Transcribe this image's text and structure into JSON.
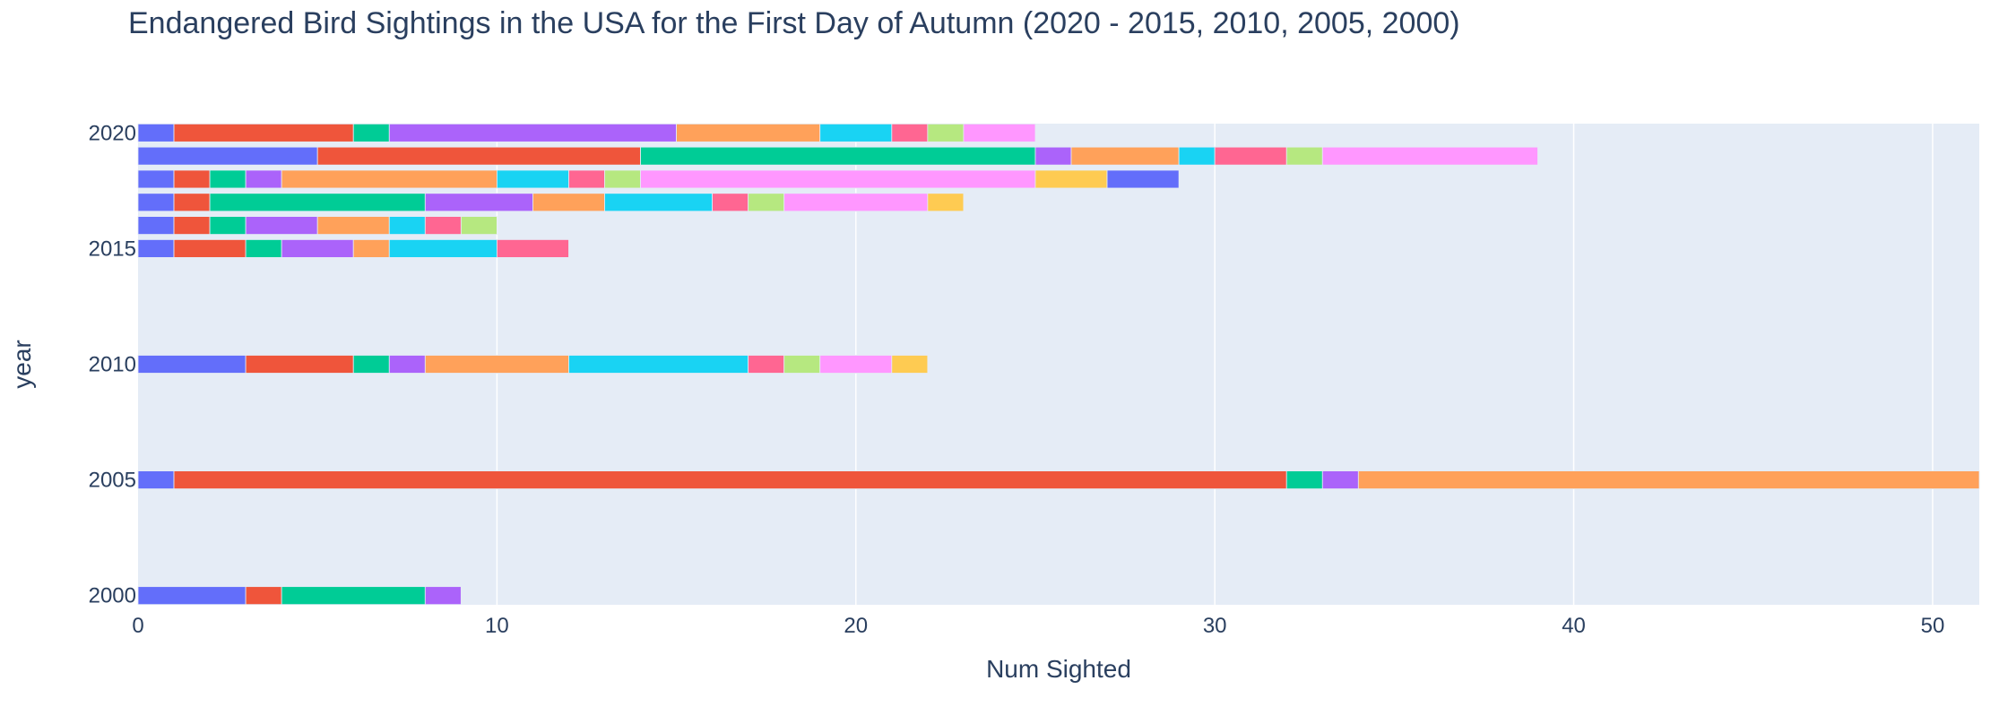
{
  "chart_data": {
    "type": "bar",
    "orientation": "horizontal",
    "barmode": "stack",
    "title": "Endangered Bird Sightings in the USA for the First Day of Autumn (2020 - 2015, 2010, 2005, 2000)",
    "xlabel": "Num Sighted",
    "ylabel": "year",
    "xlim": [
      0,
      51.3
    ],
    "ylim": [
      1999.6,
      2020.4
    ],
    "xticks": [
      0,
      10,
      20,
      30,
      40,
      50
    ],
    "yticks": [
      2000,
      2005,
      2010,
      2015,
      2020
    ],
    "grid": true,
    "legend": "none",
    "plot_background": "#e5ecf6",
    "grid_color": "#ffffff",
    "text_color": "#2a3f5f",
    "colors": [
      "#636efa",
      "#ef553b",
      "#00cc96",
      "#ab63fa",
      "#ffa15a",
      "#19d3f3",
      "#ff6692",
      "#b6e880",
      "#ff97ff",
      "#fecb52"
    ],
    "rows": [
      {
        "year": 2020,
        "segments": [
          1,
          5,
          1,
          8,
          4,
          2,
          1,
          1,
          2
        ]
      },
      {
        "year": 2019,
        "segments": [
          5,
          9,
          11,
          1,
          3,
          1,
          2,
          1,
          6
        ]
      },
      {
        "year": 2018,
        "segments": [
          1,
          1,
          1,
          1,
          6,
          2,
          1,
          1,
          11,
          2,
          2
        ]
      },
      {
        "year": 2017,
        "segments": [
          1,
          1,
          6,
          3,
          2,
          3,
          1,
          1,
          4,
          1
        ]
      },
      {
        "year": 2016,
        "segments": [
          1,
          1,
          1,
          2,
          2,
          1,
          1,
          1
        ]
      },
      {
        "year": 2015,
        "segments": [
          1,
          2,
          1,
          2,
          1,
          3,
          2
        ]
      },
      {
        "year": 2010,
        "segments": [
          3,
          3,
          1,
          1,
          4,
          5,
          1,
          1,
          2,
          1
        ]
      },
      {
        "year": 2005,
        "segments": [
          1,
          31,
          1,
          1,
          17.3
        ]
      },
      {
        "year": 2000,
        "segments": [
          3,
          1,
          4,
          1
        ]
      }
    ]
  }
}
